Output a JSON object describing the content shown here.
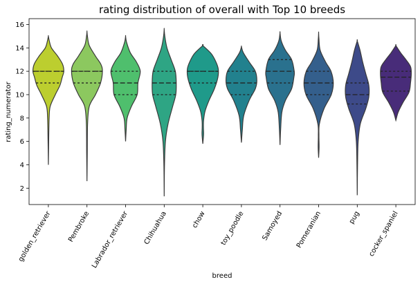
{
  "chart_data": {
    "type": "violin",
    "title": "rating distribution of overall with Top 10 breeds",
    "xlabel": "breed",
    "ylabel": "rating_numerator",
    "ylim": [
      0.6,
      16.5
    ],
    "yticks": [
      2,
      4,
      6,
      8,
      10,
      12,
      14,
      16
    ],
    "grid": false,
    "inner": "quartile",
    "categories": [
      {
        "name": "golden_retriever",
        "color": "#bcce2f",
        "min": 4.0,
        "max": 15.0,
        "q1": 11.0,
        "median": 12.0,
        "q3": 12.0,
        "profile": [
          [
            4.0,
            0.0
          ],
          [
            6.0,
            0.02
          ],
          [
            8.0,
            0.05
          ],
          [
            9.0,
            0.12
          ],
          [
            10.0,
            0.45
          ],
          [
            10.8,
            0.75
          ],
          [
            11.5,
            0.9
          ],
          [
            12.0,
            1.0
          ],
          [
            12.6,
            0.92
          ],
          [
            13.3,
            0.6
          ],
          [
            14.0,
            0.2
          ],
          [
            14.6,
            0.06
          ],
          [
            15.0,
            0.0
          ]
        ]
      },
      {
        "name": "Pembroke",
        "color": "#8cc85f",
        "min": 2.6,
        "max": 15.4,
        "q1": 11.0,
        "median": 12.0,
        "q3": 12.0,
        "profile": [
          [
            2.6,
            0.0
          ],
          [
            5.0,
            0.02
          ],
          [
            7.5,
            0.04
          ],
          [
            9.0,
            0.15
          ],
          [
            10.0,
            0.55
          ],
          [
            11.0,
            0.88
          ],
          [
            12.0,
            1.0
          ],
          [
            12.6,
            0.9
          ],
          [
            13.3,
            0.55
          ],
          [
            14.2,
            0.15
          ],
          [
            15.0,
            0.03
          ],
          [
            15.4,
            0.0
          ]
        ]
      },
      {
        "name": "Labrador_retriever",
        "color": "#4fbf6d",
        "min": 6.0,
        "max": 15.0,
        "q1": 10.0,
        "median": 11.0,
        "q3": 12.0,
        "profile": [
          [
            6.0,
            0.0
          ],
          [
            7.0,
            0.04
          ],
          [
            8.0,
            0.1
          ],
          [
            9.0,
            0.38
          ],
          [
            10.0,
            0.75
          ],
          [
            11.0,
            0.8
          ],
          [
            12.0,
            0.95
          ],
          [
            12.8,
            0.7
          ],
          [
            13.6,
            0.3
          ],
          [
            14.5,
            0.06
          ],
          [
            15.0,
            0.0
          ]
        ]
      },
      {
        "name": "Chihuahua",
        "color": "#2ea584",
        "min": 1.3,
        "max": 15.6,
        "q1": 10.0,
        "median": 11.0,
        "q3": 12.0,
        "profile": [
          [
            1.3,
            0.0
          ],
          [
            4.0,
            0.02
          ],
          [
            6.0,
            0.08
          ],
          [
            7.5,
            0.25
          ],
          [
            9.0,
            0.55
          ],
          [
            10.0,
            0.75
          ],
          [
            11.0,
            0.78
          ],
          [
            12.0,
            0.72
          ],
          [
            13.0,
            0.45
          ],
          [
            14.0,
            0.18
          ],
          [
            15.0,
            0.04
          ],
          [
            15.6,
            0.0
          ]
        ]
      },
      {
        "name": "chow",
        "color": "#1f9a8a",
        "min": 5.8,
        "max": 14.2,
        "q1": 11.0,
        "median": 12.0,
        "q3": 12.0,
        "profile": [
          [
            5.8,
            0.0
          ],
          [
            6.6,
            0.05
          ],
          [
            7.2,
            0.04
          ],
          [
            7.8,
            0.05
          ],
          [
            8.6,
            0.15
          ],
          [
            9.5,
            0.4
          ],
          [
            10.5,
            0.75
          ],
          [
            11.5,
            0.98
          ],
          [
            12.2,
            1.0
          ],
          [
            12.8,
            0.85
          ],
          [
            13.5,
            0.55
          ],
          [
            14.2,
            0.0
          ]
        ]
      },
      {
        "name": "toy_poodle",
        "color": "#22818e",
        "min": 5.9,
        "max": 14.1,
        "q1": 10.0,
        "median": 11.0,
        "q3": 12.0,
        "profile": [
          [
            5.9,
            0.0
          ],
          [
            7.0,
            0.06
          ],
          [
            8.2,
            0.15
          ],
          [
            9.5,
            0.5
          ],
          [
            10.5,
            0.9
          ],
          [
            11.2,
            1.0
          ],
          [
            12.0,
            0.9
          ],
          [
            12.8,
            0.5
          ],
          [
            13.6,
            0.12
          ],
          [
            14.1,
            0.0
          ]
        ]
      },
      {
        "name": "Samoyed",
        "color": "#2a718e",
        "min": 5.7,
        "max": 15.3,
        "q1": 11.0,
        "median": 12.0,
        "q3": 13.0,
        "profile": [
          [
            5.7,
            0.0
          ],
          [
            7.0,
            0.04
          ],
          [
            8.5,
            0.12
          ],
          [
            9.5,
            0.35
          ],
          [
            10.5,
            0.75
          ],
          [
            11.5,
            0.9
          ],
          [
            12.0,
            0.92
          ],
          [
            13.0,
            0.75
          ],
          [
            13.8,
            0.35
          ],
          [
            14.6,
            0.08
          ],
          [
            15.3,
            0.0
          ]
        ]
      },
      {
        "name": "Pomeranian",
        "color": "#345f8c",
        "min": 4.6,
        "max": 15.3,
        "q1": 10.0,
        "median": 11.0,
        "q3": 12.0,
        "profile": [
          [
            4.6,
            0.0
          ],
          [
            5.5,
            0.03
          ],
          [
            6.5,
            0.02
          ],
          [
            7.5,
            0.05
          ],
          [
            8.8,
            0.35
          ],
          [
            10.0,
            0.82
          ],
          [
            11.0,
            0.95
          ],
          [
            12.0,
            0.8
          ],
          [
            12.8,
            0.45
          ],
          [
            13.8,
            0.1
          ],
          [
            14.8,
            0.02
          ],
          [
            15.3,
            0.0
          ]
        ]
      },
      {
        "name": "pug",
        "color": "#3d4a89",
        "min": 1.4,
        "max": 14.6,
        "q1": 9.2,
        "median": 10.0,
        "q3": 11.0,
        "profile": [
          [
            1.4,
            0.0
          ],
          [
            4.0,
            0.02
          ],
          [
            6.0,
            0.06
          ],
          [
            7.5,
            0.2
          ],
          [
            8.8,
            0.55
          ],
          [
            9.8,
            0.75
          ],
          [
            10.8,
            0.75
          ],
          [
            11.8,
            0.55
          ],
          [
            12.8,
            0.35
          ],
          [
            13.8,
            0.18
          ],
          [
            14.6,
            0.0
          ]
        ]
      },
      {
        "name": "cocker_spaniel",
        "color": "#482c79",
        "min": 7.8,
        "max": 14.2,
        "q1": 10.3,
        "median": 11.5,
        "q3": 12.0,
        "profile": [
          [
            7.8,
            0.0
          ],
          [
            8.5,
            0.15
          ],
          [
            9.3,
            0.45
          ],
          [
            10.2,
            0.85
          ],
          [
            11.0,
            0.95
          ],
          [
            11.8,
            1.0
          ],
          [
            12.4,
            0.95
          ],
          [
            13.0,
            0.65
          ],
          [
            13.6,
            0.3
          ],
          [
            14.2,
            0.0
          ]
        ]
      }
    ]
  }
}
